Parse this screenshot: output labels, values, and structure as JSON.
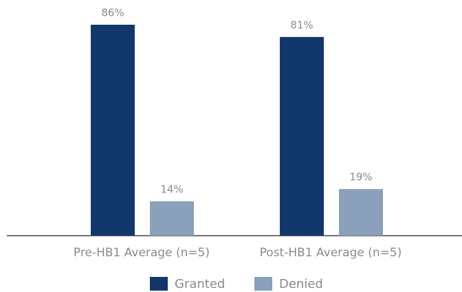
{
  "chart_data": {
    "type": "bar",
    "categories": [
      "Pre-HB1 Average (n=5)",
      "Post-HB1 Average (n=5)"
    ],
    "series": [
      {
        "name": "Granted",
        "color": "#12386b",
        "values": [
          86,
          81
        ],
        "value_labels": [
          "86%",
          "81%"
        ]
      },
      {
        "name": "Denied",
        "color": "#8aa0bb",
        "values": [
          14,
          19
        ],
        "value_labels": [
          "14%",
          "19%"
        ]
      }
    ],
    "legend": "bottom"
  }
}
